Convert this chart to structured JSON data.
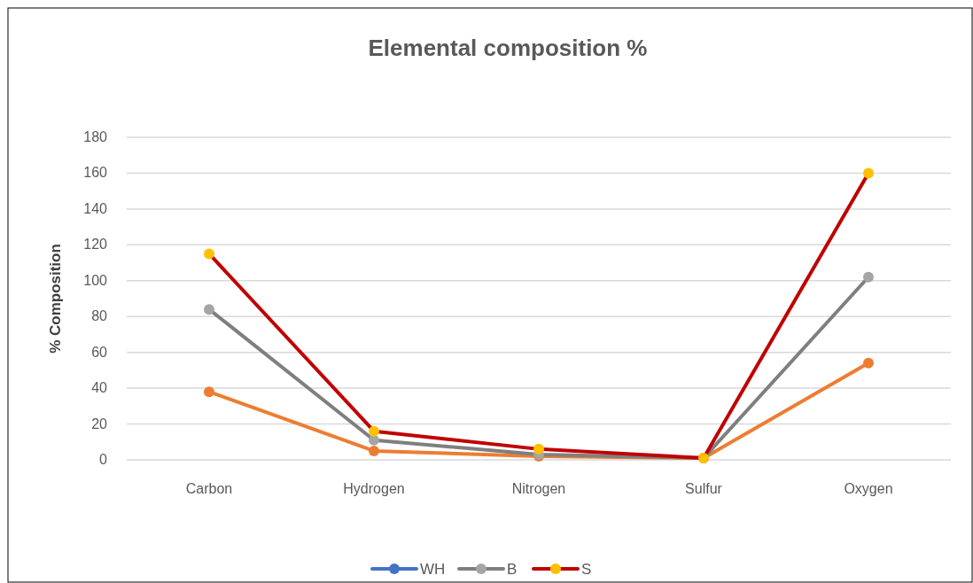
{
  "chart_data": {
    "type": "line",
    "title": "Elemental composition %",
    "ylabel": "%  Composition",
    "categories": [
      "Carbon",
      "Hydrogen",
      "Nitrogen",
      "Sulfur",
      "Oxygen"
    ],
    "series": [
      {
        "name": "WH",
        "color": "#4472c4",
        "values": [
          null,
          null,
          null,
          null,
          null
        ]
      },
      {
        "color": "#ed7d31",
        "values": [
          38,
          5,
          2,
          1,
          54
        ]
      },
      {
        "name": "B",
        "color": "#7f7f7f",
        "colors": [
          "#a5a5a5",
          "#a5a5a5",
          "#a5a5a5",
          "#a5a5a5",
          "#a5a5a5"
        ],
        "values": [
          84,
          11,
          3,
          1,
          102
        ]
      },
      {
        "name": "S",
        "color": "#c00000",
        "colors": [
          "#ffc000",
          "#ffc000",
          "#ffc000",
          "#ffc000",
          "#ffc000"
        ],
        "values": [
          115,
          16,
          6,
          1,
          160
        ]
      }
    ],
    "ylim": [
      0,
      180
    ],
    "yticks": [
      0,
      20,
      40,
      60,
      80,
      100,
      120,
      140,
      160,
      180
    ],
    "grid": "y",
    "legend": "bottom",
    "marker": "circle",
    "line_style": "solid"
  }
}
